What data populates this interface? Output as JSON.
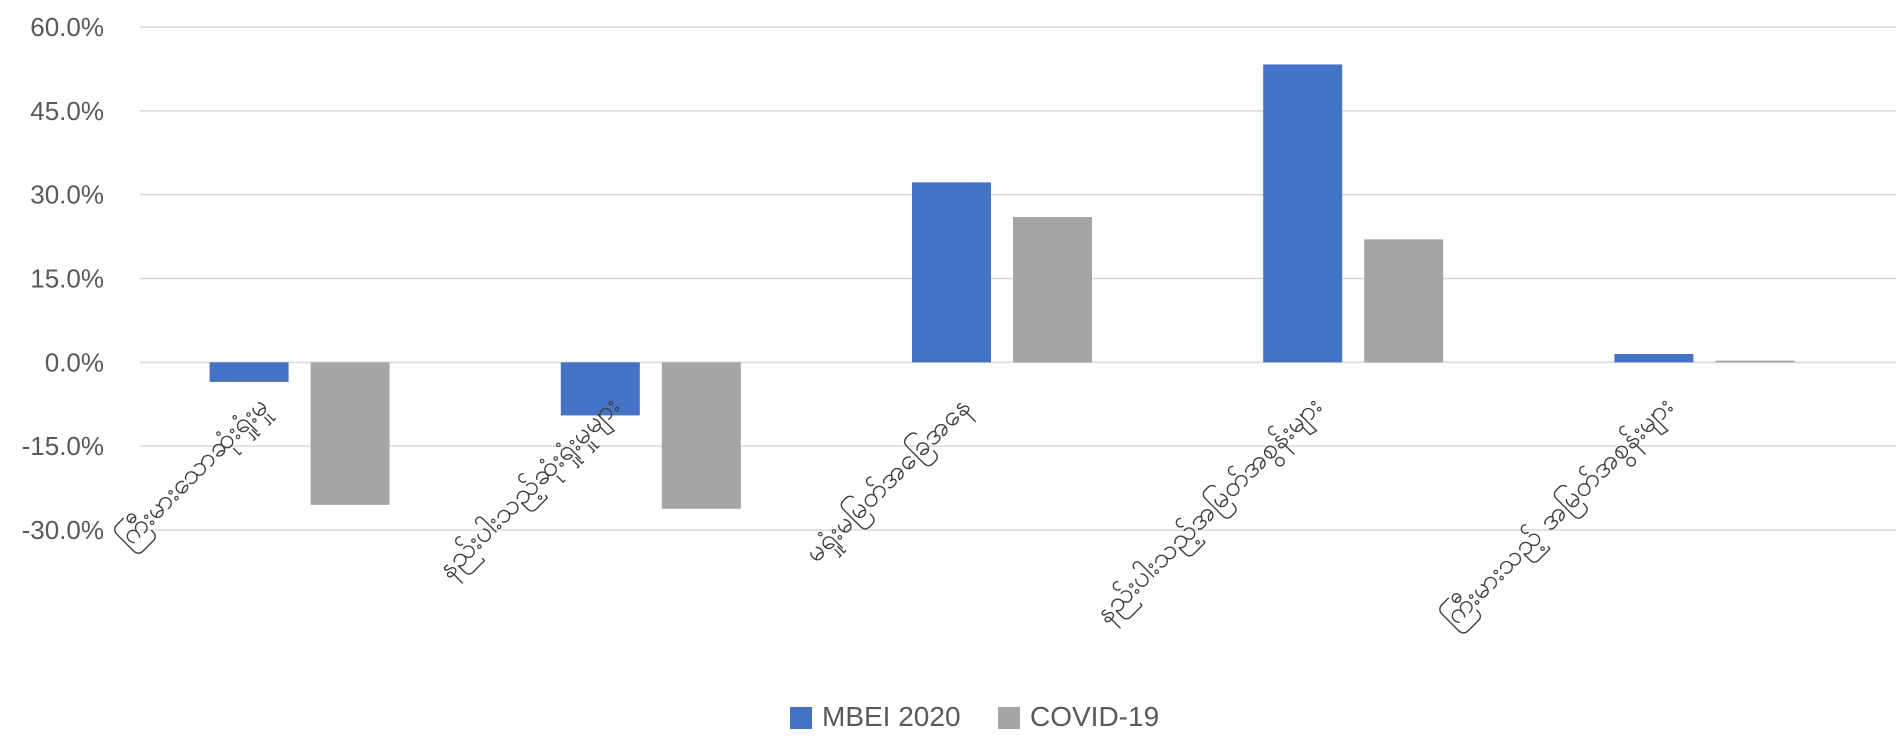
{
  "chart_data": {
    "type": "bar",
    "categories": [
      "ကြီးမားသောဆုံးရှုံးမှု",
      "နည်းပါးသည့်ဆုံးရှုံးမှုများ",
      "မရှုံးမမြတ်အခြေအနေ",
      "နည်းပါးသည့်အမြတ်အစွန်းများ",
      "ကြီးမားသည့် အမြတ်အစွန်းများ"
    ],
    "series": [
      {
        "name": "MBEI 2020",
        "color": "#4472C4",
        "values": [
          -3.5,
          -9.5,
          32.2,
          53.3,
          1.5
        ]
      },
      {
        "name": "COVID-19",
        "color": "#A5A5A5",
        "values": [
          -25.5,
          -26.2,
          26.0,
          22.0,
          0.3
        ]
      }
    ],
    "ylim": [
      -30,
      60
    ],
    "y_ticks": [
      "60.0%",
      "45.0%",
      "30.0%",
      "15.0%",
      "0.0%",
      "-15.0%",
      "-30.0%"
    ],
    "xlabel": "",
    "ylabel": "",
    "grid": true,
    "legend_position": "bottom"
  }
}
